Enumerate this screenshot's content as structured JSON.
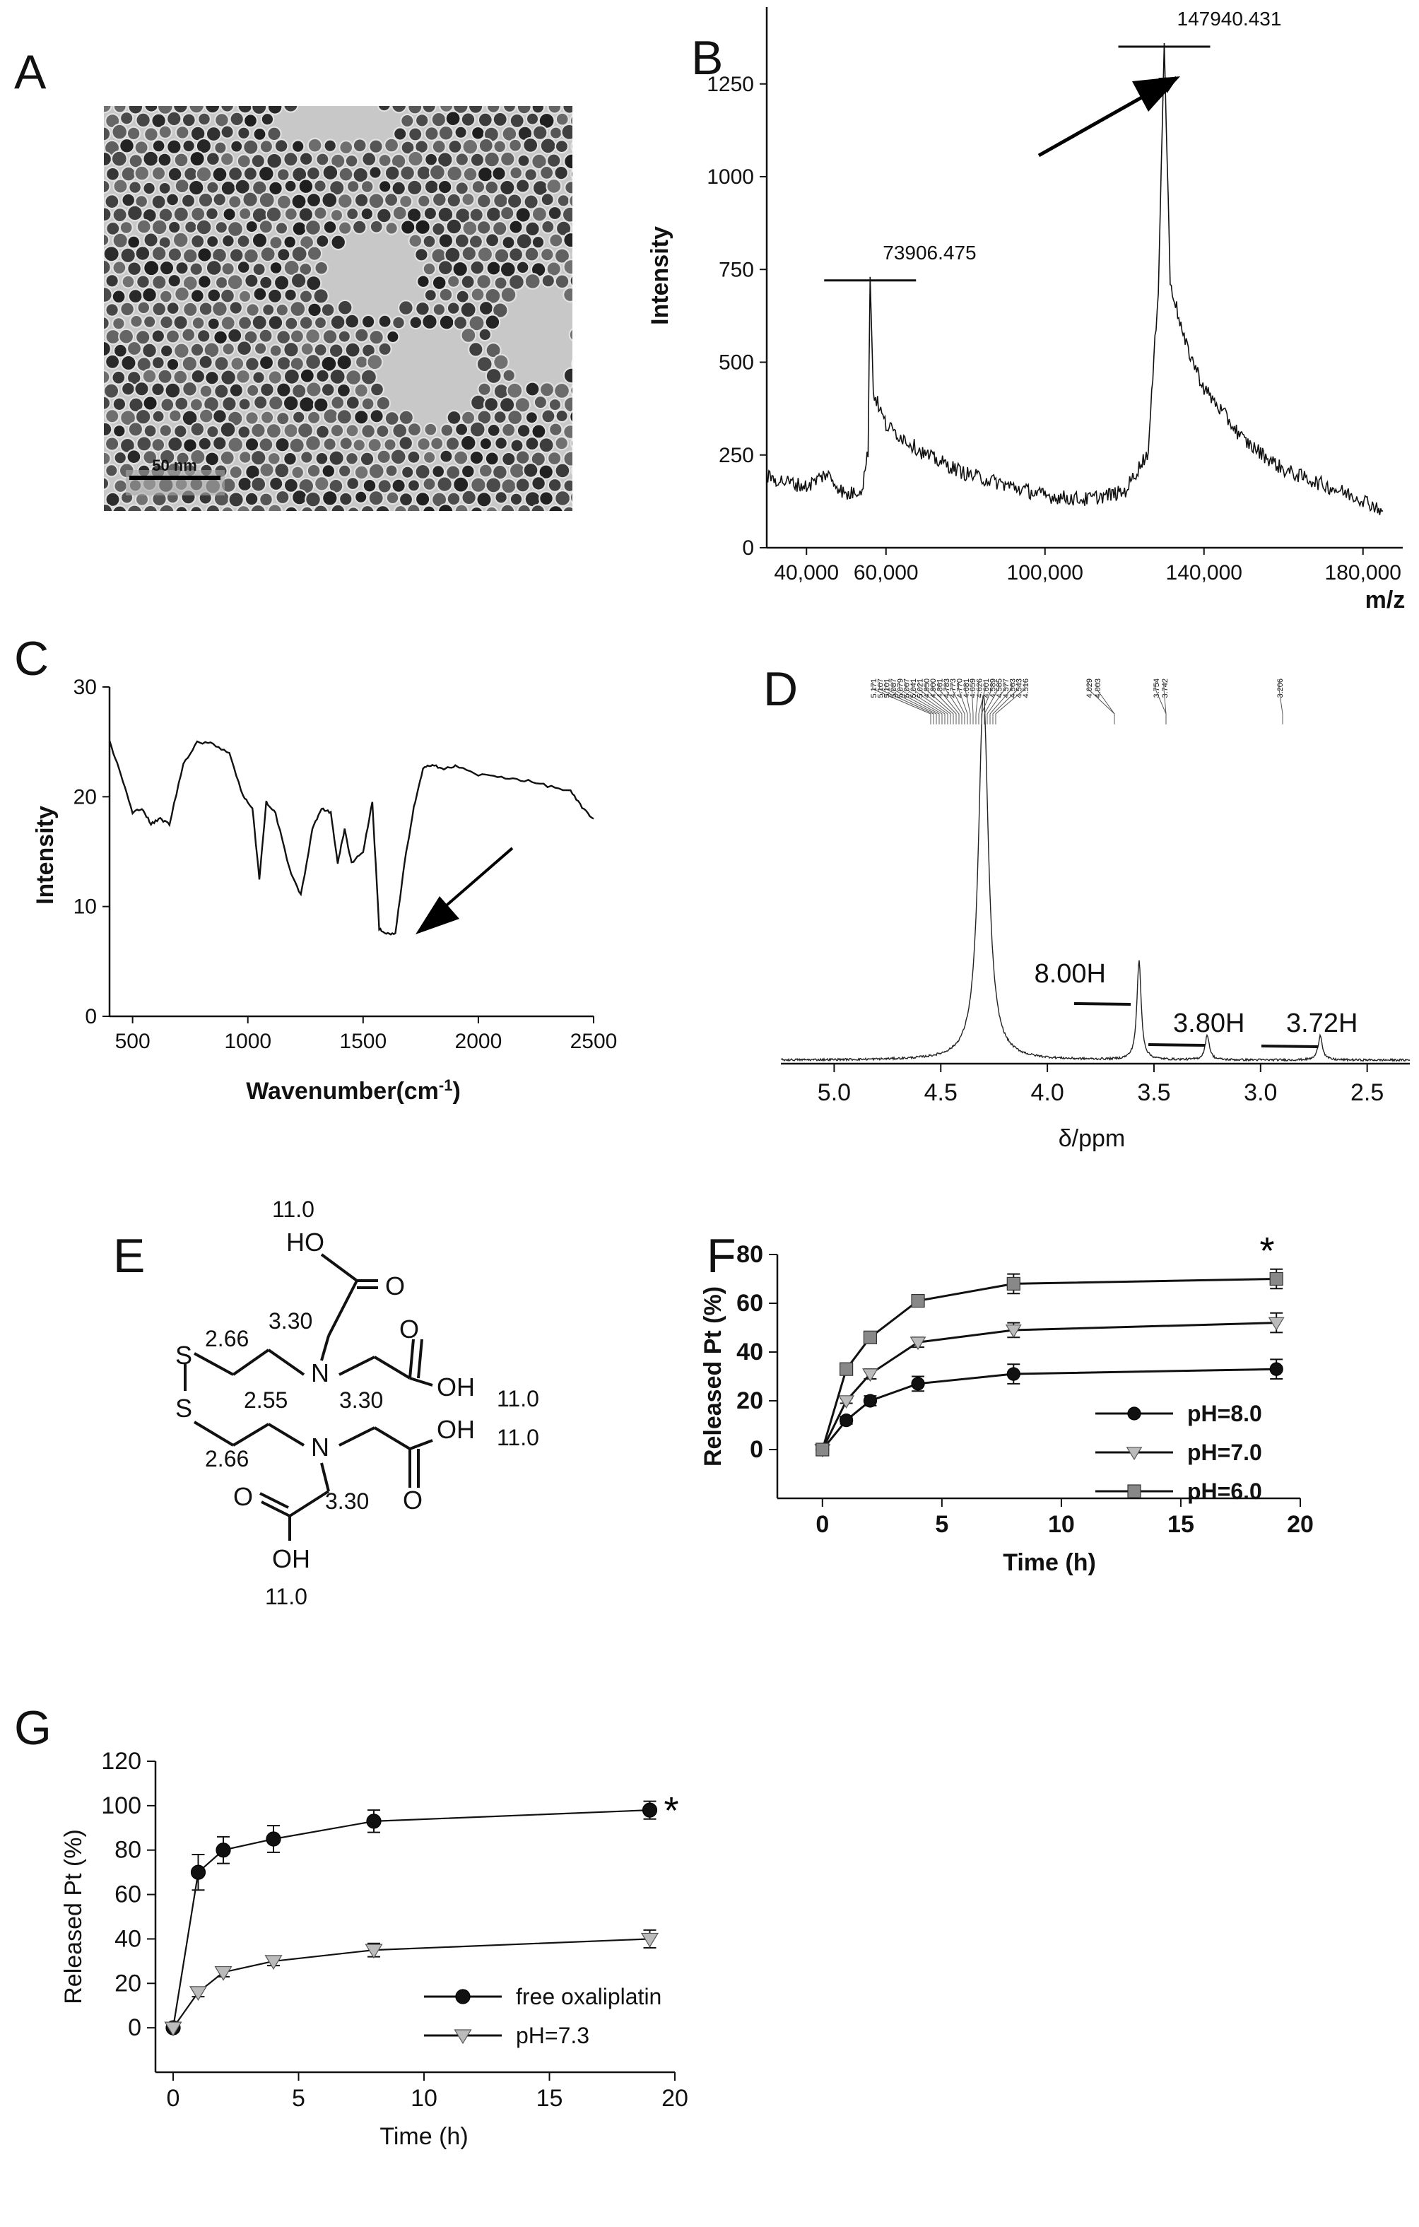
{
  "panels": {
    "A": {
      "letter": "A",
      "scale_bar": "50 nm"
    },
    "B": {
      "letter": "B"
    },
    "C": {
      "letter": "C"
    },
    "D": {
      "letter": "D"
    },
    "E": {
      "letter": "E"
    },
    "F": {
      "letter": "F",
      "significance": "*"
    },
    "G": {
      "letter": "G",
      "significance": "*"
    }
  },
  "molecule_E": {
    "atoms": {
      "O": "O",
      "HO": "HO",
      "OH": "OH",
      "S": "S",
      "N": "N"
    },
    "shifts": [
      "11.0",
      "3.30",
      "2.66",
      "2.55",
      "3.30",
      "11.0",
      "11.0",
      "2.66",
      "3.30",
      "11.0"
    ]
  },
  "chart_data": [
    {
      "panel": "B",
      "type": "line",
      "xlabel": "m/z",
      "ylabel": "Intensity",
      "xlim": [
        30000,
        190000
      ],
      "ylim": [
        0,
        1400
      ],
      "x_ticks": [
        "40,000",
        "60,000",
        "100,000",
        "140,000",
        "180,000"
      ],
      "y_ticks": [
        "0",
        "250",
        "500",
        "750",
        "1000",
        "1250"
      ],
      "x_tick_values": [
        40000,
        60000,
        100000,
        140000,
        180000
      ],
      "y_tick_values": [
        0,
        250,
        500,
        750,
        1000,
        1250
      ],
      "peaks": [
        {
          "label": "73906.475",
          "x": 56000,
          "y": 730
        },
        {
          "label": "147940.431",
          "x": 130000,
          "y": 1360
        }
      ],
      "series": [
        {
          "x": [
            30000,
            40000,
            45000,
            50000,
            54000,
            55500,
            56000,
            56800,
            60000,
            70000,
            80000,
            90000,
            100000,
            110000,
            120000,
            126000,
            128500,
            130000,
            131500,
            135000,
            140000,
            150000,
            160000,
            170000,
            180000,
            185000
          ],
          "values": [
            190,
            165,
            200,
            140,
            160,
            260,
            730,
            420,
            330,
            250,
            200,
            170,
            140,
            130,
            150,
            260,
            700,
            1360,
            720,
            560,
            430,
            290,
            210,
            170,
            130,
            100
          ]
        }
      ],
      "arrow": "points to 147940.431 peak"
    },
    {
      "panel": "C",
      "type": "line",
      "xlabel": "Wavenumber(cm",
      "xlabel_sup": "-1",
      "xlabel_end": ")",
      "ylabel": "Intensity",
      "xlim": [
        400,
        2500
      ],
      "ylim": [
        0,
        30
      ],
      "x_ticks": [
        "500",
        "1000",
        "1500",
        "2000",
        "2500"
      ],
      "y_ticks": [
        "0",
        "10",
        "20",
        "30"
      ],
      "x_tick_values": [
        500,
        1000,
        1500,
        2000,
        2500
      ],
      "y_tick_values": [
        0,
        10,
        20,
        30
      ],
      "series": [
        {
          "x": [
            400,
            450,
            500,
            540,
            580,
            620,
            660,
            720,
            780,
            850,
            920,
            980,
            1020,
            1050,
            1080,
            1120,
            1180,
            1230,
            1280,
            1320,
            1360,
            1390,
            1420,
            1450,
            1500,
            1540,
            1570,
            1600,
            1640,
            1680,
            1720,
            1760,
            1800,
            1850,
            1900,
            2000,
            2100,
            2200,
            2300,
            2400,
            2450,
            2500
          ],
          "values": [
            25,
            22,
            18.5,
            19,
            17.5,
            18,
            17.5,
            23,
            25,
            24.8,
            24,
            20,
            19,
            12.5,
            19.5,
            18.5,
            13.5,
            11,
            17,
            19,
            18.5,
            14,
            17,
            14,
            15,
            19.5,
            8,
            7.5,
            7.5,
            14,
            19,
            22.5,
            23,
            22.5,
            22.8,
            22,
            21.8,
            21.5,
            21,
            20.5,
            19,
            18
          ]
        }
      ],
      "arrow": "points to band near 1640"
    },
    {
      "panel": "D",
      "type": "line",
      "xlabel": "δ/ppm",
      "ylabel": "",
      "xlim": [
        5.25,
        2.3
      ],
      "ylim": [
        0,
        100
      ],
      "x_ticks": [
        "5.0",
        "4.5",
        "4.0",
        "3.5",
        "3.0",
        "2.5"
      ],
      "x_tick_values": [
        5.0,
        4.5,
        4.0,
        3.5,
        3.0,
        2.5
      ],
      "peak_labels": [
        "5.171",
        "5.107",
        "5.101",
        "5.087",
        "5.079",
        "5.067",
        "5.041",
        "5.021",
        "4.950",
        "4.900",
        "4.861",
        "4.783",
        "4.773",
        "4.770",
        "4.681",
        "4.659",
        "4.626",
        "4.601",
        "4.589",
        "4.585",
        "4.577",
        "4.563",
        "4.543",
        "4.516",
        "4.029",
        "4.003",
        "3.754",
        "3.742",
        "3.206"
      ],
      "integrals": [
        {
          "label": "8.00H",
          "x": 3.57
        },
        {
          "label": "3.80H",
          "x": 3.25
        },
        {
          "label": "3.72H",
          "x": 2.72
        }
      ],
      "peaks": [
        {
          "x": 4.3,
          "y": 100
        },
        {
          "x": 3.57,
          "y": 15
        },
        {
          "x": 3.25,
          "y": 4
        },
        {
          "x": 2.72,
          "y": 4
        }
      ]
    },
    {
      "panel": "F",
      "type": "line",
      "xlabel": "Time (h)",
      "ylabel": "Released Pt (%)",
      "xlim": [
        -1,
        20
      ],
      "ylim": [
        -20,
        80
      ],
      "x_ticks": [
        "0",
        "5",
        "10",
        "15",
        "20"
      ],
      "y_ticks": [
        "0",
        "20",
        "40",
        "60",
        "80"
      ],
      "x_tick_values": [
        0,
        5,
        10,
        15,
        20
      ],
      "y_tick_values": [
        0,
        20,
        40,
        60,
        80
      ],
      "categories": [
        0,
        1,
        2,
        4,
        8,
        19
      ],
      "series": [
        {
          "name": "pH=8.0",
          "marker": "circle",
          "color": "#111111",
          "values": [
            0,
            12,
            20,
            27,
            31,
            33
          ],
          "errors": [
            0,
            1.5,
            2,
            3,
            4,
            4
          ]
        },
        {
          "name": "pH=7.0",
          "marker": "triangle",
          "color": "#bbbbbb",
          "values": [
            0,
            20,
            31,
            44,
            49,
            52
          ],
          "errors": [
            0,
            1,
            2,
            2,
            3,
            4
          ]
        },
        {
          "name": "pH=6.0",
          "marker": "square",
          "color": "#888888",
          "values": [
            0,
            33,
            46,
            61,
            68,
            70
          ],
          "errors": [
            0,
            1.5,
            1.5,
            2,
            4,
            4
          ]
        }
      ],
      "legend": "bottom-right"
    },
    {
      "panel": "G",
      "type": "line",
      "xlabel": "Time (h)",
      "ylabel": "Released Pt (%)",
      "xlim": [
        0,
        20
      ],
      "ylim": [
        -20,
        120
      ],
      "x_ticks": [
        "0",
        "5",
        "10",
        "15",
        "20"
      ],
      "y_ticks": [
        "0",
        "20",
        "40",
        "60",
        "80",
        "100",
        "120"
      ],
      "x_tick_values": [
        0,
        5,
        10,
        15,
        20
      ],
      "y_tick_values": [
        0,
        20,
        40,
        60,
        80,
        100,
        120
      ],
      "categories": [
        0,
        1,
        2,
        4,
        8,
        19
      ],
      "series": [
        {
          "name": "free oxaliplatin",
          "marker": "circle",
          "color": "#111111",
          "values": [
            0,
            70,
            80,
            85,
            93,
            98
          ],
          "errors": [
            0,
            8,
            6,
            6,
            5,
            4
          ]
        },
        {
          "name": "pH=7.3",
          "marker": "triangle",
          "color": "#bbbbbb",
          "values": [
            0,
            16,
            25,
            30,
            35,
            40
          ],
          "errors": [
            0,
            2,
            2,
            2,
            3,
            4
          ]
        }
      ],
      "legend": "bottom-right"
    }
  ]
}
